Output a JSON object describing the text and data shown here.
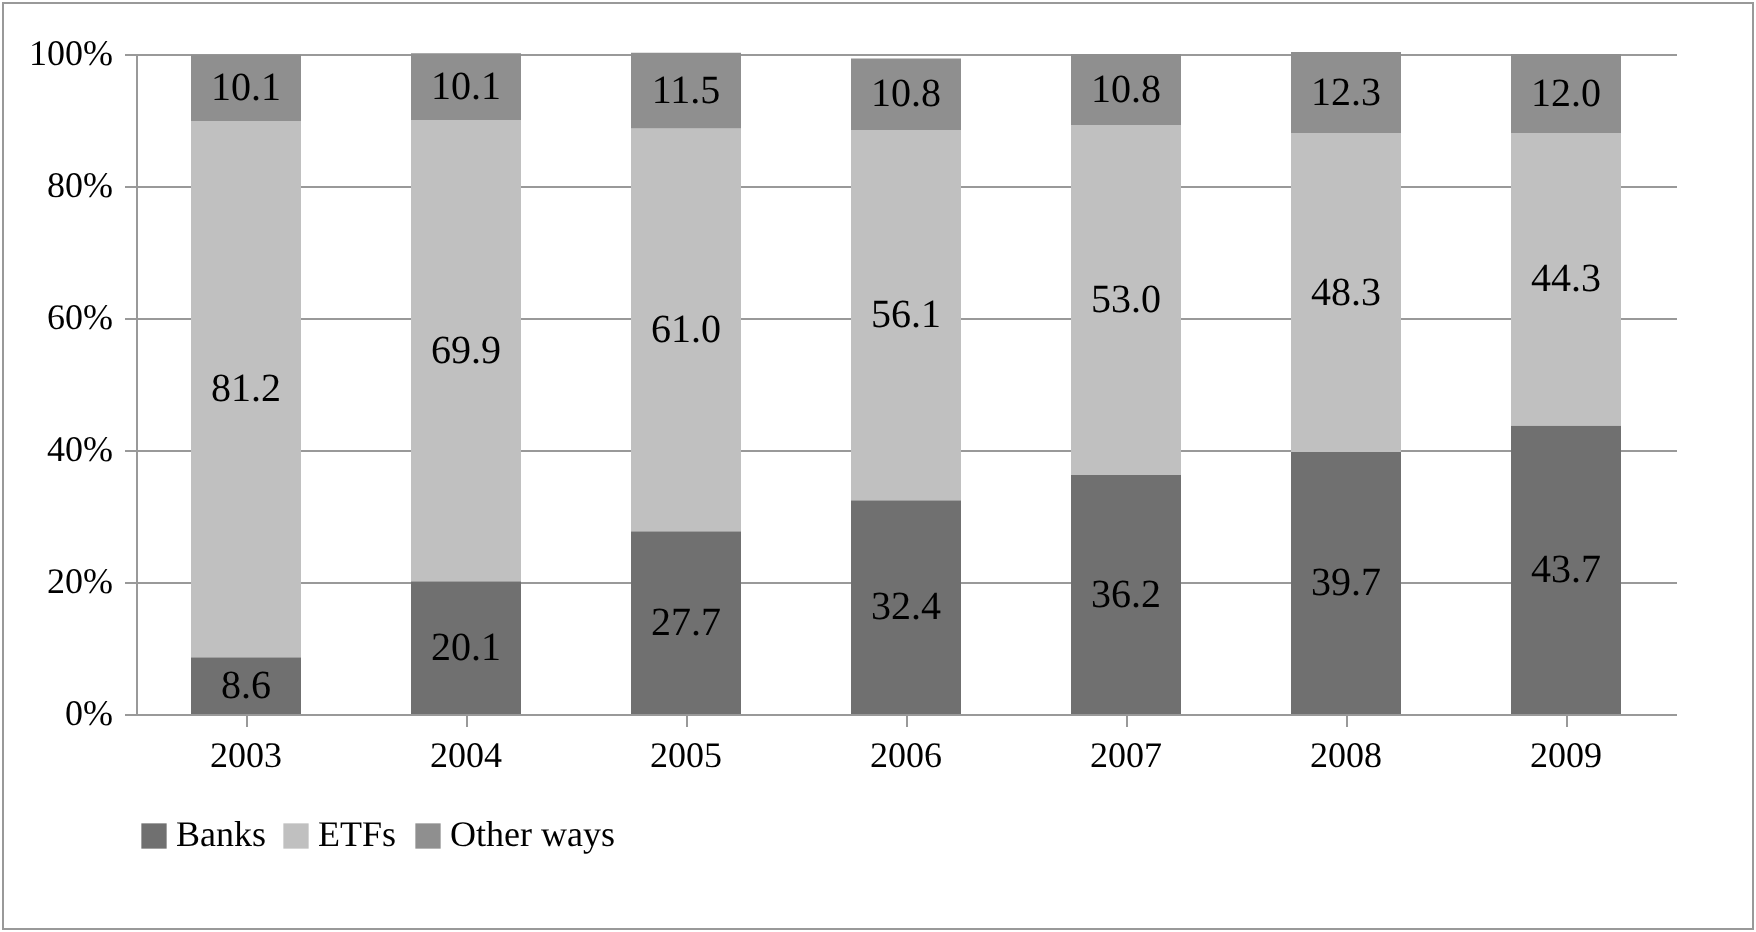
{
  "chart_data": {
    "type": "bar",
    "stacked": true,
    "categories": [
      "2003",
      "2004",
      "2005",
      "2006",
      "2007",
      "2008",
      "2009"
    ],
    "series": [
      {
        "name": "Banks",
        "color": "#707070",
        "values": [
          8.6,
          20.1,
          27.7,
          32.4,
          36.2,
          39.7,
          43.7
        ],
        "value_labels": [
          "8.6",
          "20.1",
          "27.7",
          "32.4",
          "36.2",
          "39.7",
          "43.7"
        ]
      },
      {
        "name": "ETFs",
        "color": "#c0c0c0",
        "values": [
          81.2,
          69.9,
          61.0,
          56.1,
          53.0,
          48.3,
          44.3
        ],
        "value_labels": [
          "81.2",
          "69.9",
          "61.0",
          "56.1",
          "53.0",
          "48.3",
          "44.3"
        ]
      },
      {
        "name": "Other ways",
        "color": "#8f8f8f",
        "values": [
          10.1,
          10.1,
          11.5,
          10.8,
          10.8,
          12.3,
          12.0
        ],
        "value_labels": [
          "10.1",
          "10.1",
          "11.5",
          "10.8",
          "10.8",
          "12.3",
          "12.0"
        ]
      }
    ],
    "ylim": [
      0,
      100
    ],
    "yticks": [
      {
        "value": 0,
        "label": "0%"
      },
      {
        "value": 20,
        "label": "20%"
      },
      {
        "value": 40,
        "label": "40%"
      },
      {
        "value": 60,
        "label": "60%"
      },
      {
        "value": 80,
        "label": "80%"
      },
      {
        "value": 100,
        "label": "100%"
      }
    ],
    "grid": "y",
    "legend": "bottom"
  }
}
